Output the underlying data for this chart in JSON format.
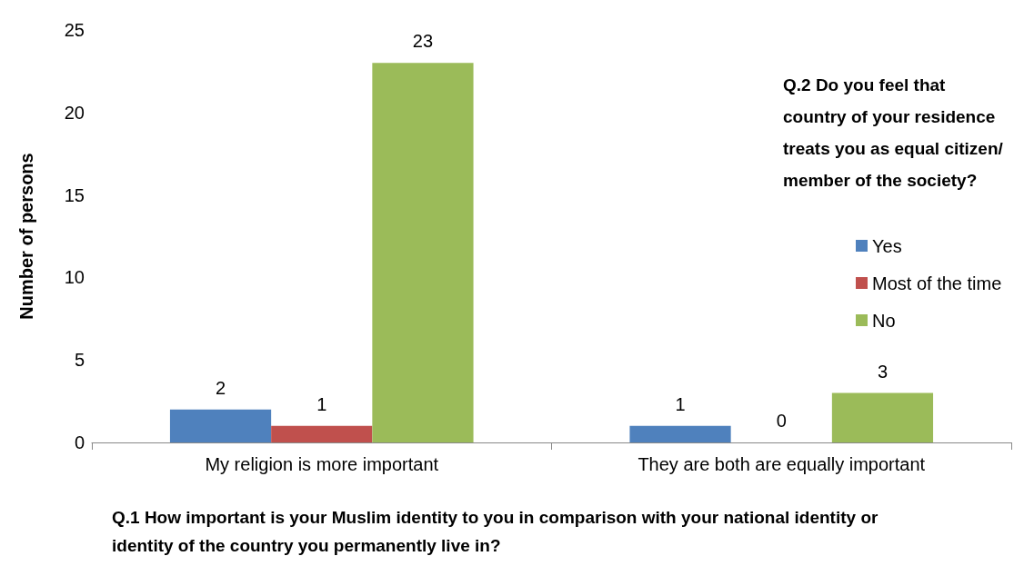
{
  "chart_data": {
    "type": "bar",
    "xlabel": "Q.1 How important is your Muslim identity to you in comparison with your national identity or identity of the country you permanently live in?",
    "ylabel": "Number of persons",
    "legend_title": "Q.2 Do you feel that country of your residence treats you as equal citizen/member of the society?",
    "categories": [
      "My religion is more important",
      "They are both are equally important"
    ],
    "series": [
      {
        "name": "Yes",
        "color": "#4f81bd",
        "values": [
          2,
          1
        ]
      },
      {
        "name": "Most of the time",
        "color": "#c0504d",
        "values": [
          1,
          0
        ]
      },
      {
        "name": "No",
        "color": "#9bbb59",
        "values": [
          23,
          3
        ]
      }
    ],
    "ylim": [
      0,
      25
    ],
    "yticks": [
      0,
      5,
      10,
      15,
      20,
      25
    ],
    "grid": false,
    "legend": "right",
    "data_labels": true
  }
}
